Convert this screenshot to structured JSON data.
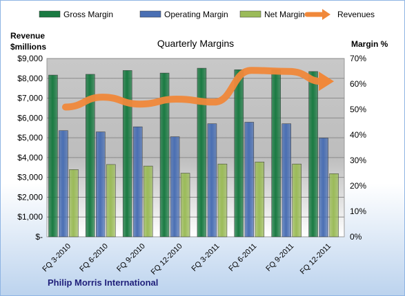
{
  "chart_data": {
    "type": "bar",
    "title": "Quarterly Margins",
    "company": "Philip Morris International",
    "left_axis": {
      "label_line1": "Revenue",
      "label_line2": "$millions",
      "min": 0,
      "max": 9000,
      "step": 1000,
      "tick_labels": [
        "$-",
        "$1,000",
        "$2,000",
        "$3,000",
        "$4,000",
        "$5,000",
        "$6,000",
        "$7,000",
        "$8,000",
        "$9,000"
      ]
    },
    "right_axis": {
      "label": "Margin %",
      "min": 0,
      "max": 70,
      "step": 10,
      "tick_labels": [
        "0%",
        "10%",
        "20%",
        "30%",
        "40%",
        "50%",
        "60%",
        "70%"
      ]
    },
    "categories": [
      "FQ 3-2010",
      "FQ 6-2010",
      "FQ 9-2010",
      "FQ 12-2010",
      "FQ 3-2011",
      "FQ 6-2011",
      "FQ 9-2011",
      "FQ 12-2011"
    ],
    "grid": true,
    "legend_position": "top",
    "series": [
      {
        "name": "Gross Margin",
        "axis": "right",
        "kind": "bar",
        "color": "#1a7a42",
        "values": [
          63.5,
          63.8,
          65.3,
          64.3,
          66.2,
          65.6,
          65.6,
          64.9
        ]
      },
      {
        "name": "Operating Margin",
        "axis": "right",
        "kind": "bar",
        "color": "#4a6fb3",
        "values": [
          41.7,
          41.2,
          43.2,
          39.3,
          44.4,
          45.0,
          44.4,
          38.8
        ]
      },
      {
        "name": "Net Margin",
        "axis": "right",
        "kind": "bar",
        "color": "#9bbb59",
        "values": [
          26.4,
          28.4,
          27.8,
          25.0,
          28.6,
          29.4,
          28.6,
          24.8
        ]
      },
      {
        "name": "Revenues",
        "axis": "left",
        "kind": "line",
        "color": "#f0883a",
        "values": [
          6550,
          7050,
          6700,
          6950,
          6800,
          8400,
          8350,
          7850
        ]
      }
    ]
  }
}
